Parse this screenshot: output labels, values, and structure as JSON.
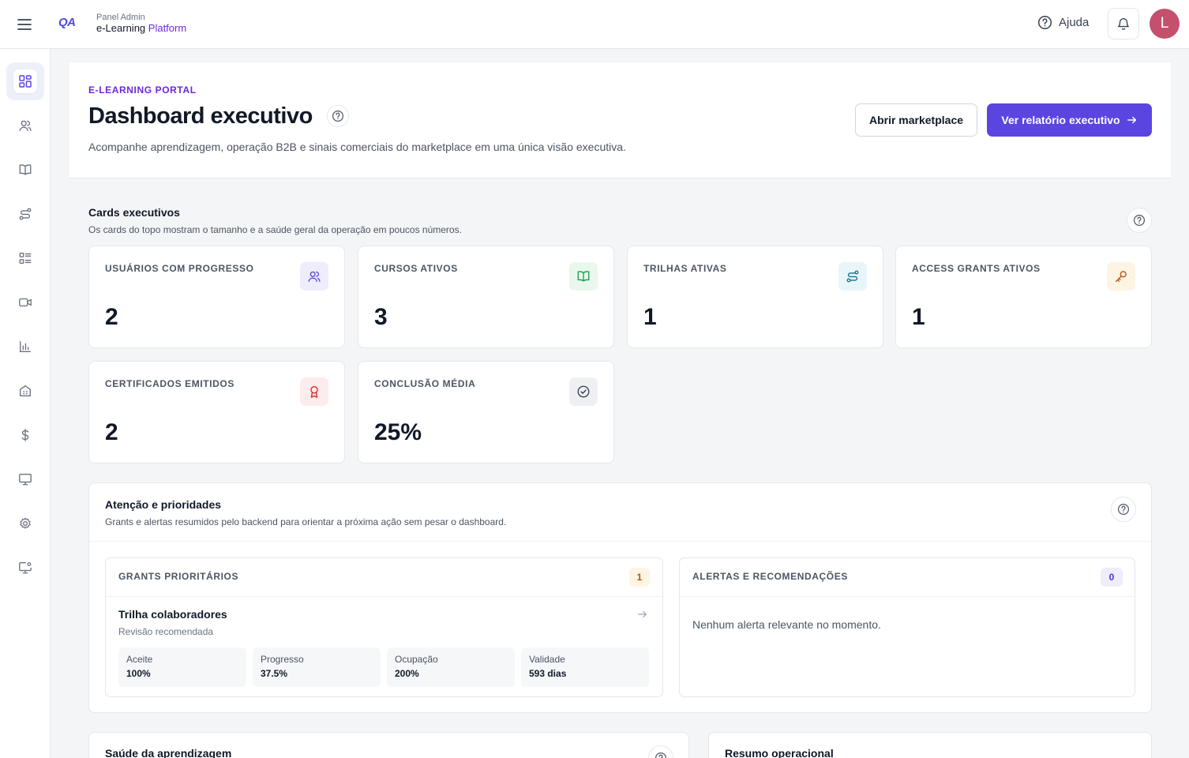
{
  "topbar": {
    "logo": "QA",
    "brand_sub": "Panel Admin",
    "brand_main": "e-Learning",
    "brand_accent": "Platform",
    "help_label": "Ajuda",
    "avatar_initial": "L"
  },
  "sidebar": {
    "items": [
      {
        "icon": "dashboard-icon",
        "active": true
      },
      {
        "icon": "users-icon"
      },
      {
        "icon": "book-icon"
      },
      {
        "icon": "route-icon"
      },
      {
        "icon": "list-icon"
      },
      {
        "icon": "video-icon"
      },
      {
        "icon": "bar-chart-icon"
      },
      {
        "icon": "building-icon"
      },
      {
        "icon": "dollar-icon"
      },
      {
        "icon": "monitor-icon"
      },
      {
        "icon": "gear-icon"
      },
      {
        "icon": "monitor-settings-icon"
      }
    ]
  },
  "hero": {
    "eyebrow": "E-LEARNING PORTAL",
    "title": "Dashboard executivo",
    "description": "Acompanhe aprendizagem, operação B2B e sinais comerciais do marketplace em uma única visão executiva.",
    "btn_marketplace": "Abrir marketplace",
    "btn_report": "Ver relatório executivo"
  },
  "cards_section": {
    "title": "Cards executivos",
    "description": "Os cards do topo mostram o tamanho e a saúde geral da operação em poucos números."
  },
  "cards": [
    {
      "label": "USUÁRIOS COM PROGRESSO",
      "value": "2",
      "icon": "users-icon",
      "accent": "#5b45e0"
    },
    {
      "label": "CURSOS ATIVOS",
      "value": "3",
      "icon": "book-icon",
      "accent": "#16a34a"
    },
    {
      "label": "TRILHAS ATIVAS",
      "value": "1",
      "icon": "route-icon",
      "accent": "#0e7490"
    },
    {
      "label": "ACCESS GRANTS ATIVOS",
      "value": "1",
      "icon": "key-icon",
      "accent": "#b45309"
    },
    {
      "label": "CERTIFICADOS EMITIDOS",
      "value": "2",
      "icon": "award-icon",
      "accent": "#dc2626"
    },
    {
      "label": "CONCLUSÃO MÉDIA",
      "value": "25%",
      "icon": "check-circle-icon",
      "accent": "#374151"
    }
  ],
  "attention": {
    "title": "Atenção e prioridades",
    "description": "Grants e alertas resumidos pelo backend para orientar a próxima ação sem pesar o dashboard.",
    "grants": {
      "heading": "GRANTS PRIORITÁRIOS",
      "count": "1",
      "item_title": "Trilha colaboradores",
      "item_sub": "Revisão recomendada",
      "metrics": [
        {
          "label": "Aceite",
          "value": "100%"
        },
        {
          "label": "Progresso",
          "value": "37.5%"
        },
        {
          "label": "Ocupação",
          "value": "200%"
        },
        {
          "label": "Validade",
          "value": "593 dias"
        }
      ]
    },
    "alerts": {
      "heading": "ALERTAS E RECOMENDAÇÕES",
      "count": "0",
      "empty_message": "Nenhum alerta relevante no momento."
    }
  },
  "bottom": {
    "learning_health": "Saúde da aprendizagem",
    "ops_summary": "Resumo operacional"
  }
}
